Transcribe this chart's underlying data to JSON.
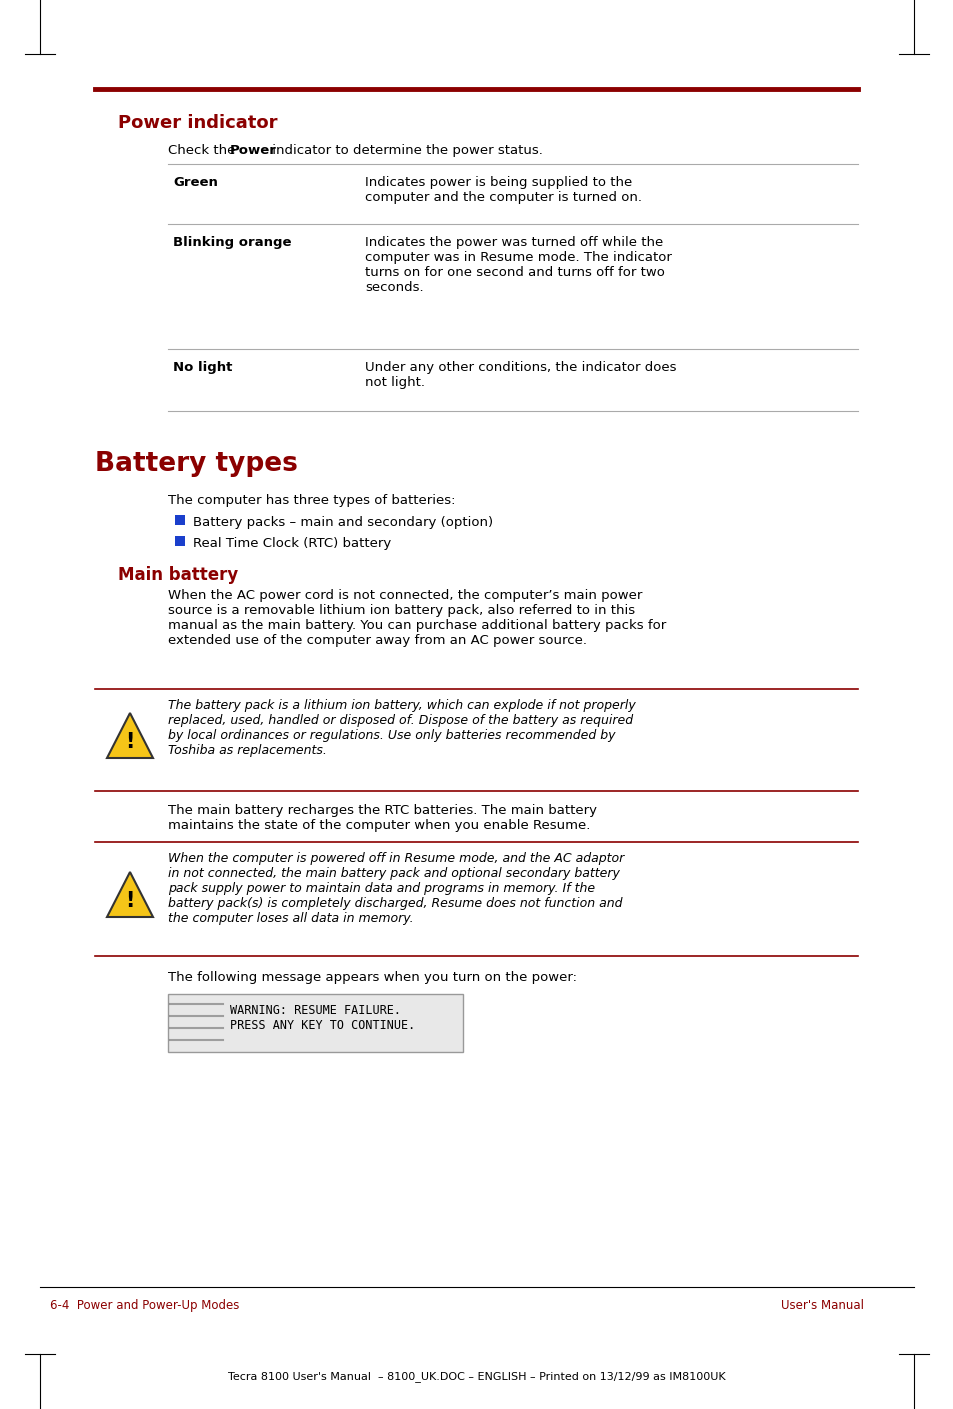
{
  "page_bg": "#ffffff",
  "dark_red": "#8B0000",
  "text_color": "#000000",
  "table_line_color": "#aaaaaa",
  "bullet_color": "#1a3fcc",
  "code_bg": "#e8e8e8",
  "code_border": "#999999",
  "power_indicator_title": "Power indicator",
  "battery_types_title": "Battery types",
  "main_battery_title": "Main battery",
  "battery_bullets": [
    "Battery packs – main and secondary (option)",
    "Real Time Clock (RTC) battery"
  ],
  "warning1_text": "The battery pack is a lithium ion battery, which can explode if not properly\nreplaced, used, handled or disposed of. Dispose of the battery as required\nby local ordinances or regulations. Use only batteries recommended by\nToshiba as replacements.",
  "warning2_text": "When the computer is powered off in Resume mode, and the AC adaptor\nin not connected, the main battery pack and optional secondary battery\npack supply power to maintain data and programs in memory. If the\nbattery pack(s) is completely discharged, Resume does not function and\nthe computer loses all data in memory.",
  "footer_left": "6-4  Power and Power-Up Modes",
  "footer_right": "User's Manual",
  "footer_bottom": "Tecra 8100 User's Manual  – 8100_UK.DOC – ENGLISH – Printed on 13/12/99 as IM8100UK"
}
